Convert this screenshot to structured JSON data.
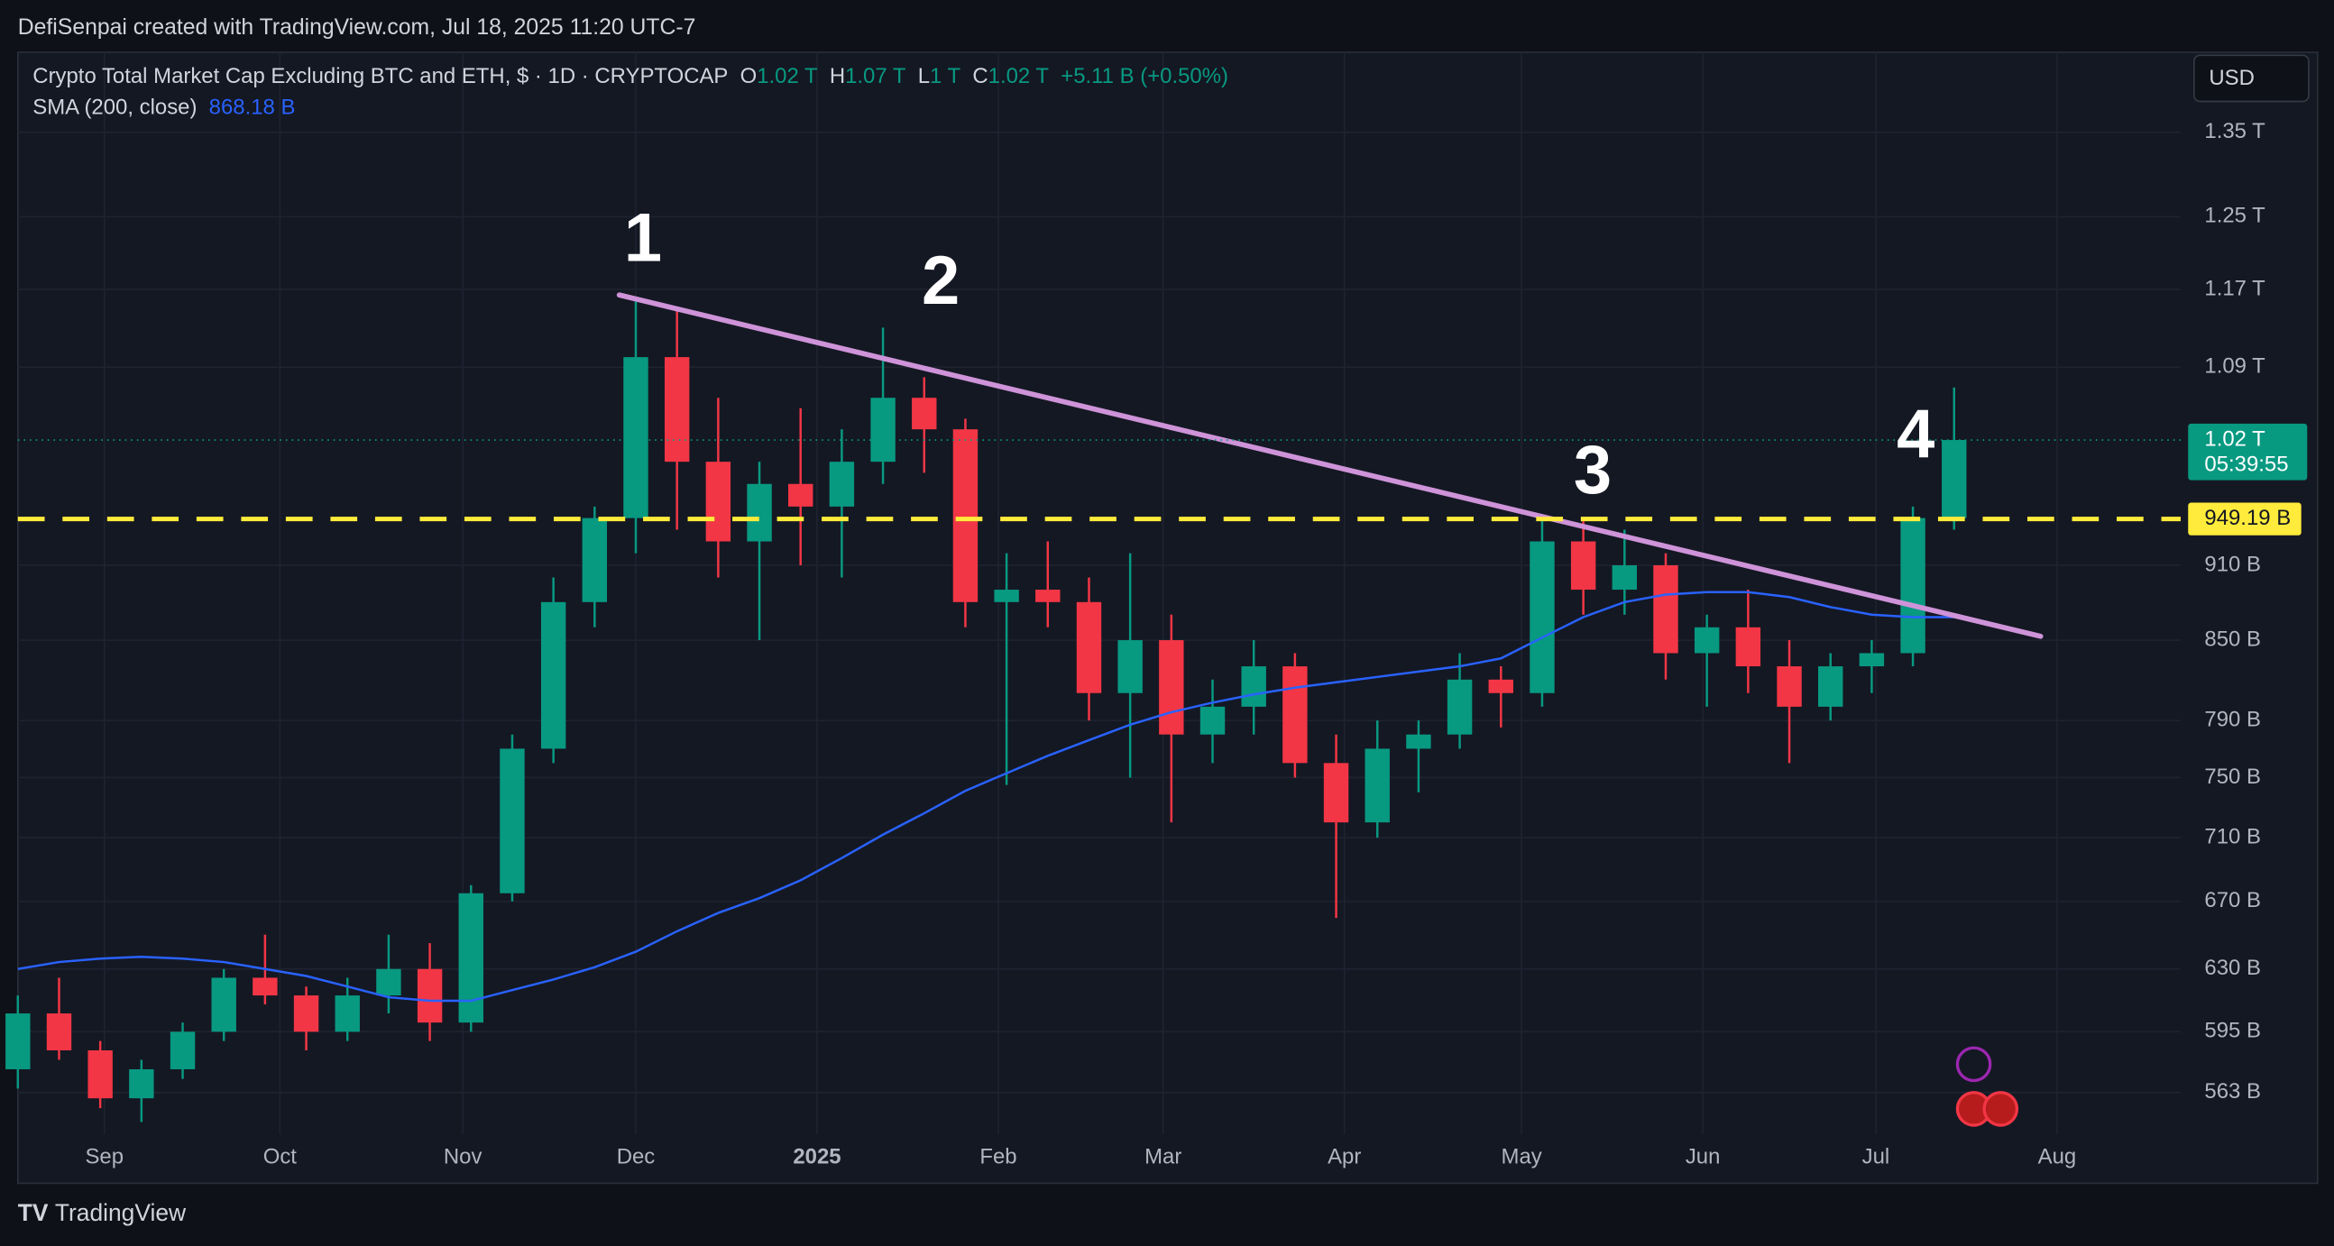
{
  "header": "DefiSenpai created with TradingView.com, Jul 18, 2025 11:20 UTC-7",
  "footer": "TradingView",
  "chart_data": {
    "type": "candlestick",
    "title": "Crypto Total Market Cap Excluding BTC and ETH, $ · 1D · CRYPTOCAP",
    "ohlc_legend": [
      {
        "key": "O",
        "value": "1.02 T"
      },
      {
        "key": "H",
        "value": "1.07 T"
      },
      {
        "key": "L",
        "value": "1 T"
      },
      {
        "key": "C",
        "value": "1.02 T"
      }
    ],
    "change": "+5.11 B (+0.50%)",
    "currency": "USD",
    "log_scale": true,
    "grid": true,
    "up_color": "#089981",
    "down_color": "#f23645",
    "x": [
      0,
      1,
      2,
      3,
      4,
      5,
      6,
      7,
      8,
      9,
      10,
      11,
      12,
      13,
      14,
      15,
      16,
      17,
      18,
      19,
      20,
      21,
      22,
      23,
      24,
      25,
      26,
      27,
      28,
      29,
      30,
      31,
      32,
      33,
      34,
      35,
      36,
      37,
      38,
      39,
      40,
      41,
      42,
      43,
      44,
      45,
      46,
      47
    ],
    "open": [
      575,
      605,
      585,
      560,
      575,
      595,
      625,
      615,
      595,
      615,
      630,
      600,
      675,
      770,
      880,
      950,
      1100,
      1000,
      930,
      980,
      960,
      1000,
      1060,
      1030,
      880,
      890,
      880,
      810,
      850,
      780,
      800,
      830,
      760,
      720,
      770,
      780,
      820,
      810,
      930,
      890,
      910,
      840,
      860,
      830,
      800,
      830,
      840,
      950
    ],
    "high": [
      615,
      625,
      590,
      580,
      600,
      630,
      650,
      620,
      625,
      650,
      645,
      680,
      780,
      900,
      960,
      1160,
      1150,
      1060,
      1000,
      1050,
      1030,
      1130,
      1080,
      1040,
      920,
      930,
      900,
      920,
      870,
      820,
      850,
      840,
      780,
      790,
      790,
      840,
      830,
      950,
      950,
      940,
      920,
      870,
      890,
      850,
      840,
      850,
      960,
      1070
    ],
    "low": [
      565,
      580,
      555,
      548,
      570,
      590,
      610,
      585,
      590,
      605,
      590,
      595,
      670,
      760,
      860,
      920,
      940,
      900,
      850,
      910,
      900,
      980,
      990,
      860,
      745,
      860,
      790,
      750,
      720,
      760,
      780,
      750,
      660,
      710,
      740,
      770,
      785,
      800,
      870,
      870,
      820,
      800,
      810,
      760,
      790,
      810,
      830,
      940
    ],
    "close": [
      605,
      585,
      560,
      575,
      595,
      625,
      615,
      595,
      615,
      630,
      600,
      675,
      770,
      880,
      950,
      1100,
      1000,
      930,
      980,
      960,
      1000,
      1060,
      1030,
      880,
      890,
      880,
      810,
      850,
      780,
      800,
      830,
      760,
      720,
      770,
      780,
      820,
      810,
      930,
      890,
      910,
      840,
      860,
      830,
      800,
      830,
      840,
      950,
      1020
    ],
    "sma": {
      "name": "SMA (200, close)",
      "last": "868.18 B",
      "color": "#2962ff",
      "values": [
        630,
        634,
        636,
        637,
        636,
        634,
        630,
        626,
        620,
        614,
        612,
        612,
        618,
        624,
        631,
        640,
        652,
        663,
        672,
        683,
        697,
        712,
        726,
        741,
        753,
        765,
        776,
        787,
        796,
        803,
        809,
        814,
        818,
        822,
        826,
        830,
        836,
        852,
        868,
        880,
        886,
        888,
        888,
        884,
        876,
        870,
        868,
        868
      ]
    },
    "trendline": {
      "x": [
        14.6,
        49.1
      ],
      "values": [
        1164,
        853
      ],
      "color": "#ce93d8"
    },
    "level": {
      "value": 949.19,
      "label": "949.19 B",
      "color": "#ffeb3b"
    },
    "last_price": {
      "value": 1020,
      "label": "1.02 T",
      "countdown": "05:39:55",
      "color": "#089981"
    },
    "annotations": [
      "1",
      "2",
      "3",
      "4"
    ],
    "xlim": [
      0,
      52.5
    ],
    "xticks": [
      {
        "value": 2.1,
        "label": "Sep"
      },
      {
        "value": 6.36,
        "label": "Oct"
      },
      {
        "value": 10.8,
        "label": "Nov"
      },
      {
        "value": 15.0,
        "label": "Dec"
      },
      {
        "value": 19.4,
        "label": "2025"
      },
      {
        "value": 23.8,
        "label": "Feb"
      },
      {
        "value": 27.8,
        "label": "Mar"
      },
      {
        "value": 32.2,
        "label": "Apr"
      },
      {
        "value": 36.5,
        "label": "May"
      },
      {
        "value": 40.9,
        "label": "Jun"
      },
      {
        "value": 45.1,
        "label": "Jul"
      },
      {
        "value": 49.5,
        "label": "Aug"
      }
    ],
    "ylim": [
      542,
      1452
    ],
    "yticks": [
      {
        "value": 1350,
        "label": "1.35 T"
      },
      {
        "value": 1250,
        "label": "1.25 T"
      },
      {
        "value": 1170,
        "label": "1.17 T"
      },
      {
        "value": 1090,
        "label": "1.09 T"
      },
      {
        "value": 910,
        "label": "910 B"
      },
      {
        "value": 850,
        "label": "850 B"
      },
      {
        "value": 790,
        "label": "790 B"
      },
      {
        "value": 750,
        "label": "750 B"
      },
      {
        "value": 710,
        "label": "710 B"
      },
      {
        "value": 670,
        "label": "670 B"
      },
      {
        "value": 630,
        "label": "630 B"
      },
      {
        "value": 595,
        "label": "595 B"
      },
      {
        "value": 563,
        "label": "563 B"
      }
    ]
  }
}
